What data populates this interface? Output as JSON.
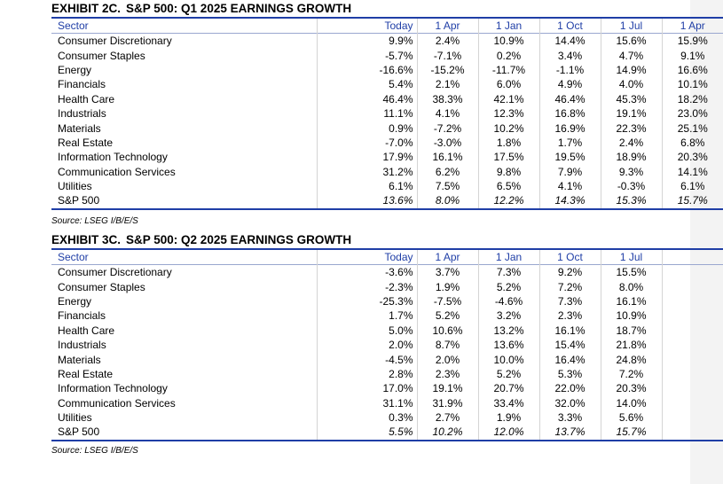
{
  "exhibit_2c": {
    "title_left": "EXHIBIT 2C.",
    "title_right": "S&P 500: Q1 2025 EARNINGS GROWTH",
    "headers": [
      "Sector",
      "Today",
      "1 Apr",
      "1 Jan",
      "1 Oct",
      "1 Jul",
      "1 Apr"
    ],
    "rows": [
      {
        "sector": "Consumer Discretionary",
        "values": [
          "9.9%",
          "2.4%",
          "10.9%",
          "14.4%",
          "15.6%",
          "15.9%"
        ]
      },
      {
        "sector": "Consumer Staples",
        "values": [
          "-5.7%",
          "-7.1%",
          "0.2%",
          "3.4%",
          "4.7%",
          "9.1%"
        ]
      },
      {
        "sector": "Energy",
        "values": [
          "-16.6%",
          "-15.2%",
          "-11.7%",
          "-1.1%",
          "14.9%",
          "16.6%"
        ]
      },
      {
        "sector": "Financials",
        "values": [
          "5.4%",
          "2.1%",
          "6.0%",
          "4.9%",
          "4.0%",
          "10.1%"
        ]
      },
      {
        "sector": "Health Care",
        "values": [
          "46.4%",
          "38.3%",
          "42.1%",
          "46.4%",
          "45.3%",
          "18.2%"
        ]
      },
      {
        "sector": "Industrials",
        "values": [
          "11.1%",
          "4.1%",
          "12.3%",
          "16.8%",
          "19.1%",
          "23.0%"
        ]
      },
      {
        "sector": "Materials",
        "values": [
          "0.9%",
          "-7.2%",
          "10.2%",
          "16.9%",
          "22.3%",
          "25.1%"
        ]
      },
      {
        "sector": "Real Estate",
        "values": [
          "-7.0%",
          "-3.0%",
          "1.8%",
          "1.7%",
          "2.4%",
          "6.8%"
        ]
      },
      {
        "sector": "Information Technology",
        "values": [
          "17.9%",
          "16.1%",
          "17.5%",
          "19.5%",
          "18.9%",
          "20.3%"
        ]
      },
      {
        "sector": "Communication Services",
        "values": [
          "31.2%",
          "6.2%",
          "9.8%",
          "7.9%",
          "9.3%",
          "14.1%"
        ]
      },
      {
        "sector": "Utilities",
        "values": [
          "6.1%",
          "7.5%",
          "6.5%",
          "4.1%",
          "-0.3%",
          "6.1%"
        ]
      },
      {
        "sector": "S&P 500",
        "values": [
          "13.6%",
          "8.0%",
          "12.2%",
          "14.3%",
          "15.3%",
          "15.7%"
        ]
      }
    ],
    "source": "Source: LSEG I/B/E/S"
  },
  "exhibit_3c": {
    "title_left": "EXHIBIT 3C.",
    "title_right": "S&P 500: Q2 2025 EARNINGS GROWTH",
    "headers": [
      "Sector",
      "Today",
      "1 Apr",
      "1 Jan",
      "1 Oct",
      "1 Jul",
      ""
    ],
    "rows": [
      {
        "sector": "Consumer Discretionary",
        "values": [
          "-3.6%",
          "3.7%",
          "7.3%",
          "9.2%",
          "15.5%",
          ""
        ]
      },
      {
        "sector": "Consumer Staples",
        "values": [
          "-2.3%",
          "1.9%",
          "5.2%",
          "7.2%",
          "8.0%",
          ""
        ]
      },
      {
        "sector": "Energy",
        "values": [
          "-25.3%",
          "-7.5%",
          "-4.6%",
          "7.3%",
          "16.1%",
          ""
        ]
      },
      {
        "sector": "Financials",
        "values": [
          "1.7%",
          "5.2%",
          "3.2%",
          "2.3%",
          "10.9%",
          ""
        ]
      },
      {
        "sector": "Health Care",
        "values": [
          "5.0%",
          "10.6%",
          "13.2%",
          "16.1%",
          "18.7%",
          ""
        ]
      },
      {
        "sector": "Industrials",
        "values": [
          "2.0%",
          "8.7%",
          "13.6%",
          "15.4%",
          "21.8%",
          ""
        ]
      },
      {
        "sector": "Materials",
        "values": [
          "-4.5%",
          "2.0%",
          "10.0%",
          "16.4%",
          "24.8%",
          ""
        ]
      },
      {
        "sector": "Real Estate",
        "values": [
          "2.8%",
          "2.3%",
          "5.2%",
          "5.3%",
          "7.2%",
          ""
        ]
      },
      {
        "sector": "Information Technology",
        "values": [
          "17.0%",
          "19.1%",
          "20.7%",
          "22.0%",
          "20.3%",
          ""
        ]
      },
      {
        "sector": "Communication Services",
        "values": [
          "31.1%",
          "31.9%",
          "33.4%",
          "32.0%",
          "14.0%",
          ""
        ]
      },
      {
        "sector": "Utilities",
        "values": [
          "0.3%",
          "2.7%",
          "1.9%",
          "3.3%",
          "5.6%",
          ""
        ]
      },
      {
        "sector": "S&P 500",
        "values": [
          "5.5%",
          "10.2%",
          "12.0%",
          "13.7%",
          "15.7%",
          ""
        ]
      }
    ],
    "source": "Source: LSEG I/B/E/S"
  }
}
